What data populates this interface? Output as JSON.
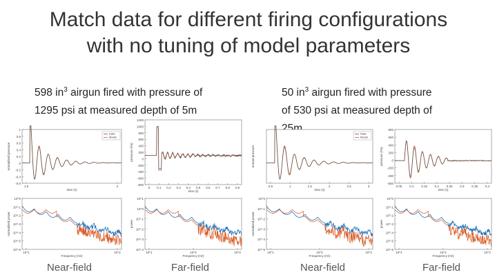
{
  "title_line1": "Match data for different firing configurations",
  "title_line2": "with no tuning of model parameters",
  "left_desc": {
    "pre": "598 in",
    "sup": "3",
    "post": " airgun fired with pressure of",
    "line2": "1295 psi at measured depth of 5m"
  },
  "right_desc": {
    "pre": "50 in",
    "sup": "3",
    "post": " airgun fired with pressure",
    "line2": "of 530 psi at measured depth of",
    "line3": "25m"
  },
  "captions": [
    "Near-field",
    "Far-field",
    "Near-field",
    "Far-field"
  ],
  "colors": {
    "data": "#555555",
    "model": "#d9541e",
    "model_blue": "#1f6fb4"
  },
  "chart_data": [
    {
      "type": "line",
      "panel": "left-nearfield-time",
      "xlabel": "time (s)",
      "ylabel": "normalized pressure",
      "ylim": [
        -0.6,
        1.0
      ],
      "xlim": [
        0.0,
        2.0
      ],
      "yticks": [
        "1",
        "0.8",
        "0.6",
        "0.4",
        "0.2",
        "0",
        "-0.2",
        "-0.4",
        "-0.6"
      ],
      "xticks": [
        "1.5",
        "2"
      ],
      "legend": [
        "Data",
        "Model"
      ],
      "legend_position": "top-right"
    },
    {
      "type": "line",
      "panel": "left-farfield-time",
      "xlabel": "time (s)",
      "ylabel": "pressure (Pa)",
      "ylim": [
        -800,
        1200
      ],
      "xlim": [
        0.0,
        0.9
      ],
      "yticks": [
        "1200",
        "1000",
        "800",
        "600",
        "400",
        "200",
        "0",
        "-200",
        "-400",
        "-600",
        "-800"
      ],
      "xticks": [
        "0",
        "0.1",
        "0.2",
        "0.3",
        "0.4",
        "0.5",
        "0.6",
        "0.7",
        "0.8",
        "0.9"
      ]
    },
    {
      "type": "line",
      "panel": "right-nearfield-time",
      "xlabel": "time (s)",
      "ylabel": "normal pressure",
      "ylim": [
        -0.5,
        1.0
      ],
      "xlim": [
        0.0,
        2.0
      ],
      "yticks": [],
      "xticks": [
        "0.5",
        "1",
        "1.5",
        "2",
        "2.5",
        "3"
      ],
      "legend": [
        "Data",
        "Model"
      ],
      "legend_position": "top-right"
    },
    {
      "type": "line",
      "panel": "right-farfield-time",
      "xlabel": "time (s)",
      "ylabel": "pressure (Pa)",
      "ylim": [
        -500,
        800
      ],
      "xlim": [
        0.05,
        0.4
      ],
      "yticks": [
        "800",
        "600",
        "400",
        "200",
        "0",
        "-200",
        "-400",
        "-600"
      ],
      "xticks": [
        "0.05",
        "0.1",
        "0.15",
        "0.2",
        "0.25",
        "0.3",
        "0.35",
        "0.4"
      ]
    },
    {
      "type": "line",
      "panel": "left-nearfield-spectrum",
      "xlabel": "Frequency (Hz)",
      "ylabel": "normalized power",
      "yscale": "log",
      "xscale": "log",
      "yticks": [
        "10^0",
        "10^-1",
        "10^-2",
        "10^-3",
        "10^-4",
        "10^-5",
        "10^-6"
      ],
      "xticks": [
        "10^1",
        "10^2"
      ]
    },
    {
      "type": "line",
      "panel": "left-farfield-spectrum",
      "xlabel": "Frequency (Hz)",
      "ylabel": "power",
      "yscale": "log",
      "xscale": "log",
      "yticks": [
        "10^1",
        "10^0",
        "10^-1",
        "10^-2",
        "10^-3",
        "10^-4"
      ],
      "xticks": [
        "10^1",
        "10^2",
        "10^3"
      ]
    },
    {
      "type": "line",
      "panel": "right-nearfield-spectrum",
      "xlabel": "Frequency (Hz)",
      "ylabel": "normalized power",
      "yscale": "log",
      "xscale": "log",
      "yticks": [
        "10^0",
        "10^-1",
        "10^-2",
        "10^-3",
        "10^-4",
        "10^-5"
      ],
      "xticks": [
        "10^1",
        "10^2",
        "10^3"
      ]
    },
    {
      "type": "line",
      "panel": "right-farfield-spectrum",
      "xlabel": "Frequency (Hz)",
      "ylabel": "power",
      "yscale": "log",
      "xscale": "log",
      "yticks": [
        "10^0",
        "10^-1",
        "10^-2",
        "10^-3",
        "10^-4",
        "10^-5",
        "10^-6"
      ],
      "xticks": [
        "10^1",
        "10^2",
        "10^3"
      ]
    }
  ]
}
